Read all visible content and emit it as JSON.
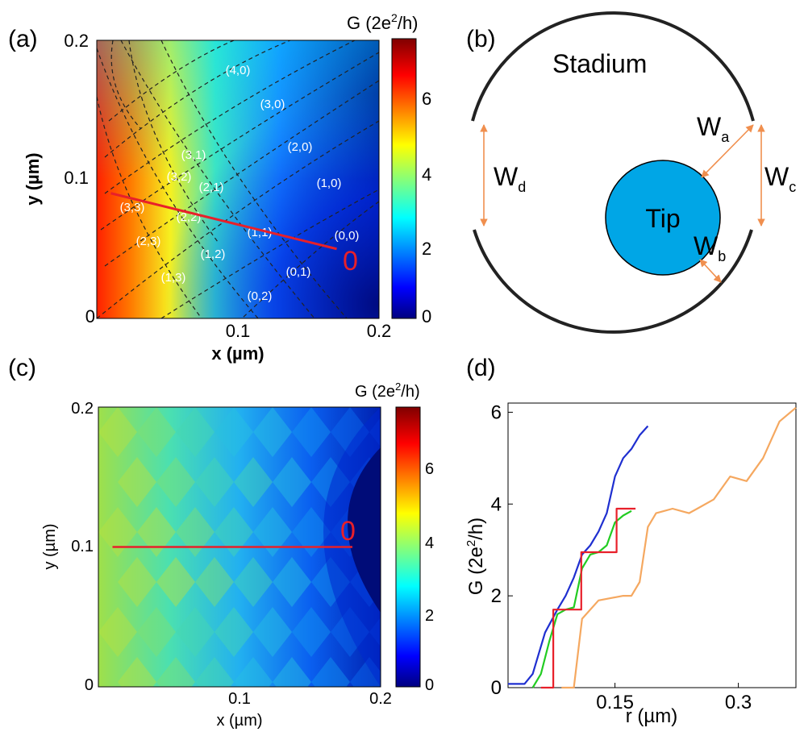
{
  "panels": {
    "a": {
      "label": "(a)",
      "cbar_title_main": "G (2e",
      "cbar_title_sup": "2",
      "cbar_title_end": "/h)",
      "xlabel": "x (µm)",
      "ylabel": "y (µm)",
      "xticks": [
        "0.1",
        "0.2"
      ],
      "yticks": [
        "0",
        "0.1",
        "0.2"
      ],
      "cbar_ticks": [
        "0",
        "2",
        "4",
        "6"
      ],
      "zero_marker": "0",
      "mode_labels": [
        "(4,0)",
        "(3,0)",
        "(2,0)",
        "(1,0)",
        "(0,0)",
        "(3,1)",
        "(2,1)",
        "(1,1)",
        "(0,1)",
        "(3,2)",
        "(2,2)",
        "(1,2)",
        "(0,2)",
        "(3,3)",
        "(2,3)",
        "(1,3)"
      ]
    },
    "b": {
      "label": "(b)",
      "stadium_label": "Stadium",
      "tip_label": "Tip",
      "widths": [
        {
          "main": "W",
          "sub": "d"
        },
        {
          "main": "W",
          "sub": "a"
        },
        {
          "main": "W",
          "sub": "c"
        },
        {
          "main": "W",
          "sub": "b"
        }
      ],
      "colors": {
        "tip_fill": "#00A6E6",
        "arrow": "#F08F4E",
        "wall": "#222222"
      }
    },
    "c": {
      "label": "(c)",
      "cbar_title_main": "G (2e",
      "cbar_title_sup": "2",
      "cbar_title_end": "/h)",
      "xlabel": "x (µm)",
      "ylabel": "y (µm)",
      "xticks": [
        "0.1",
        "0.2"
      ],
      "yticks": [
        "0",
        "0.1",
        "0.2"
      ],
      "cbar_ticks": [
        "0",
        "2",
        "4",
        "6"
      ],
      "zero_marker": "0"
    },
    "d": {
      "label": "(d)",
      "xlabel": "r (µm)",
      "ylabel_main": "G (2e",
      "ylabel_sup": "2",
      "ylabel_end": "/h)"
    }
  },
  "chart_data": [
    {
      "type": "heatmap",
      "panel": "a",
      "xlim": [
        0,
        0.2
      ],
      "ylim": [
        0,
        0.2
      ],
      "clim": [
        0,
        7.5
      ],
      "colormap": "jet",
      "cut_line": {
        "x": [
          0.01,
          0.17
        ],
        "y": [
          0.09,
          0.05
        ],
        "color": "#E8202A"
      }
    },
    {
      "type": "heatmap",
      "panel": "c",
      "xlim": [
        0,
        0.2
      ],
      "ylim": [
        0,
        0.2
      ],
      "clim": [
        0,
        7.5
      ],
      "colormap": "jet",
      "cut_line": {
        "x": [
          0.01,
          0.18
        ],
        "y": [
          0.1,
          0.1
        ],
        "color": "#E8202A"
      }
    },
    {
      "type": "line",
      "panel": "d",
      "xlim": [
        0.02,
        0.37
      ],
      "ylim": [
        0,
        6.2
      ],
      "xticks": [
        0.15,
        0.3
      ],
      "yticks": [
        0,
        2,
        4,
        6
      ],
      "series": [
        {
          "color": "#1F2FD0",
          "x": [
            0.02,
            0.04,
            0.05,
            0.065,
            0.08,
            0.09,
            0.1,
            0.11,
            0.12,
            0.13,
            0.14,
            0.15,
            0.16,
            0.17,
            0.18,
            0.19
          ],
          "y": [
            0.08,
            0.08,
            0.3,
            1.2,
            1.7,
            2.0,
            2.4,
            2.9,
            3.1,
            3.4,
            3.8,
            4.6,
            5.0,
            5.2,
            5.5,
            5.7
          ]
        },
        {
          "color": "#22CC22",
          "x": [
            0.05,
            0.06,
            0.07,
            0.08,
            0.09,
            0.1,
            0.11,
            0.12,
            0.13,
            0.14,
            0.15,
            0.16,
            0.17
          ],
          "y": [
            0.0,
            0.3,
            1.0,
            1.6,
            1.7,
            1.75,
            2.6,
            2.9,
            2.95,
            3.1,
            3.6,
            3.75,
            3.85
          ]
        },
        {
          "color": "#E8202A",
          "x": [
            0.06,
            0.075,
            0.075,
            0.109,
            0.109,
            0.152,
            0.152,
            0.175
          ],
          "y": [
            0.0,
            0.0,
            1.7,
            1.7,
            2.95,
            2.95,
            3.9,
            3.9
          ]
        },
        {
          "color": "#F5A860",
          "x": [
            0.085,
            0.1,
            0.11,
            0.13,
            0.16,
            0.17,
            0.18,
            0.19,
            0.2,
            0.22,
            0.24,
            0.25,
            0.27,
            0.29,
            0.31,
            0.33,
            0.35,
            0.37
          ],
          "y": [
            0.0,
            0.0,
            1.5,
            1.9,
            2.0,
            2.0,
            2.3,
            3.5,
            3.8,
            3.9,
            3.8,
            3.9,
            4.1,
            4.6,
            4.5,
            5.0,
            5.8,
            6.1
          ]
        }
      ]
    }
  ]
}
